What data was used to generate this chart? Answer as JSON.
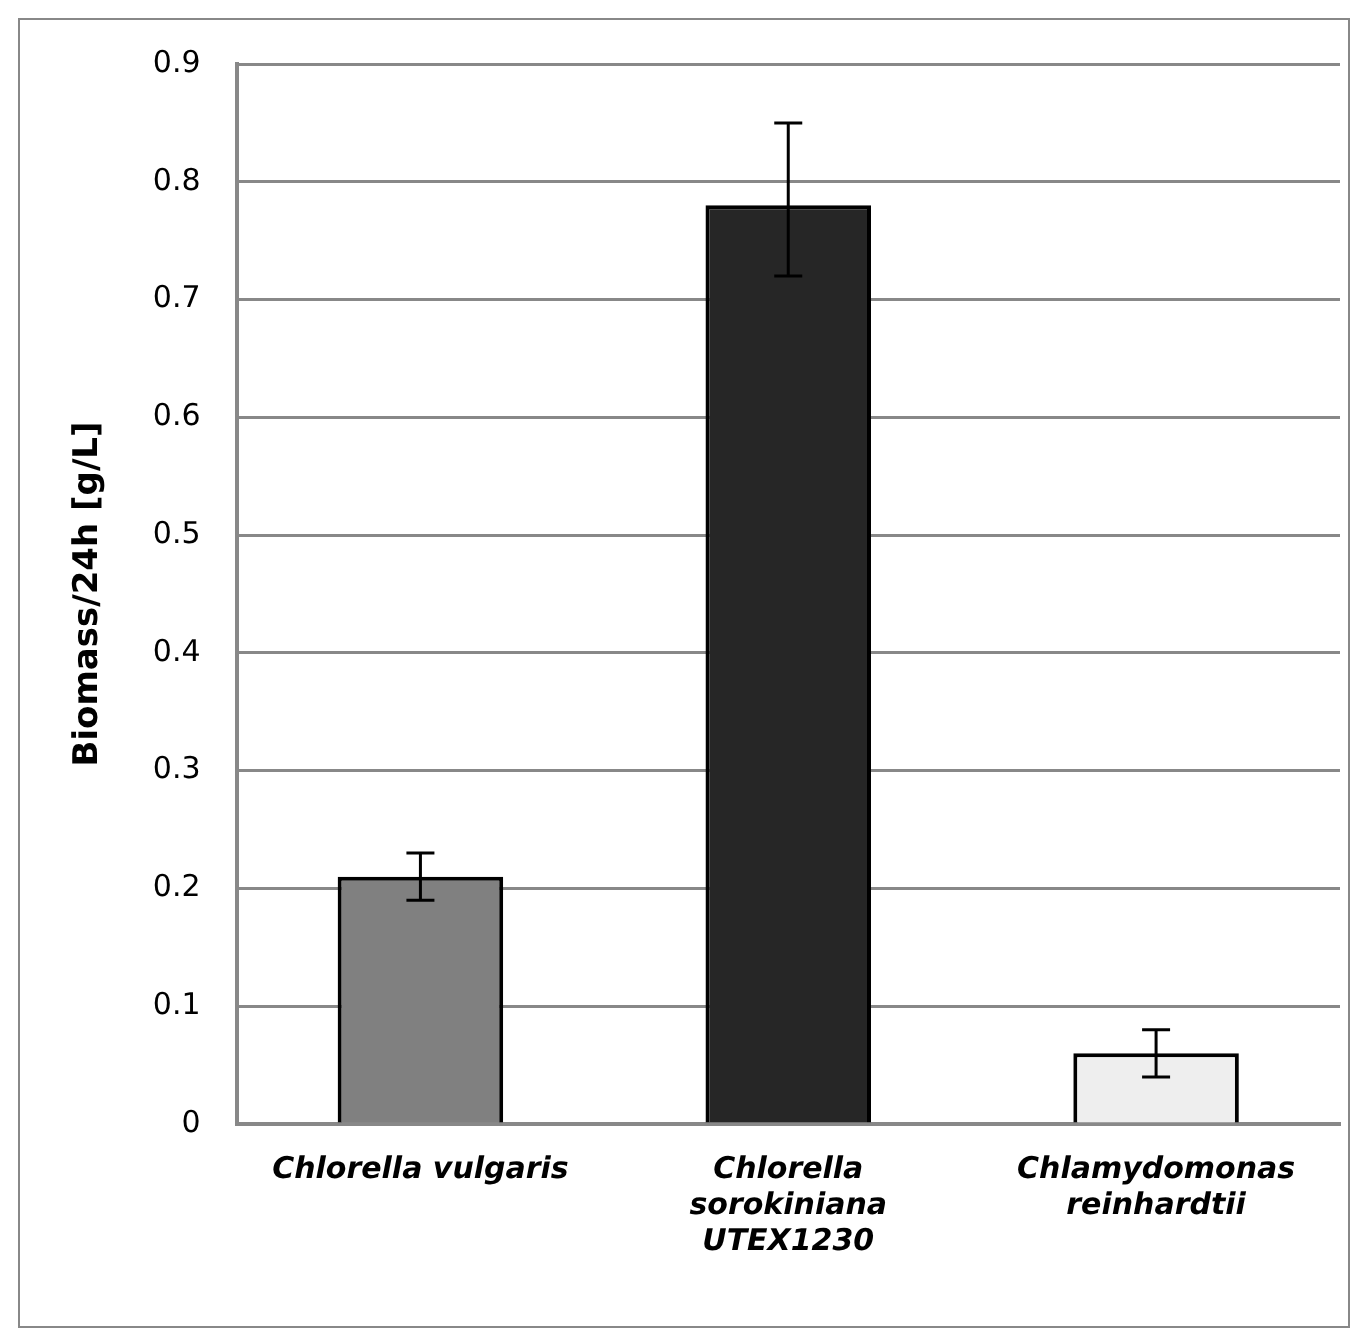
{
  "chart_data": {
    "type": "bar",
    "ylabel": "Biomass/24h [g/L]",
    "categories": [
      "Chlorella vulgaris",
      "Chlorella sorokiniana UTEX1230",
      "Chlamydomonas reinhardtii"
    ],
    "values": [
      0.21,
      0.78,
      0.06
    ],
    "colors": [
      "#808080",
      "#262626",
      "#eeeeee"
    ],
    "errors": [
      [
        0.19,
        0.23
      ],
      [
        0.72,
        0.85
      ],
      [
        0.04,
        0.08
      ]
    ],
    "ylim": [
      0,
      0.9
    ],
    "yticks": [
      0,
      0.1,
      0.2,
      0.3,
      0.4,
      0.5,
      0.6,
      0.7,
      0.8,
      0.9
    ],
    "grid": "y",
    "legend": false
  }
}
